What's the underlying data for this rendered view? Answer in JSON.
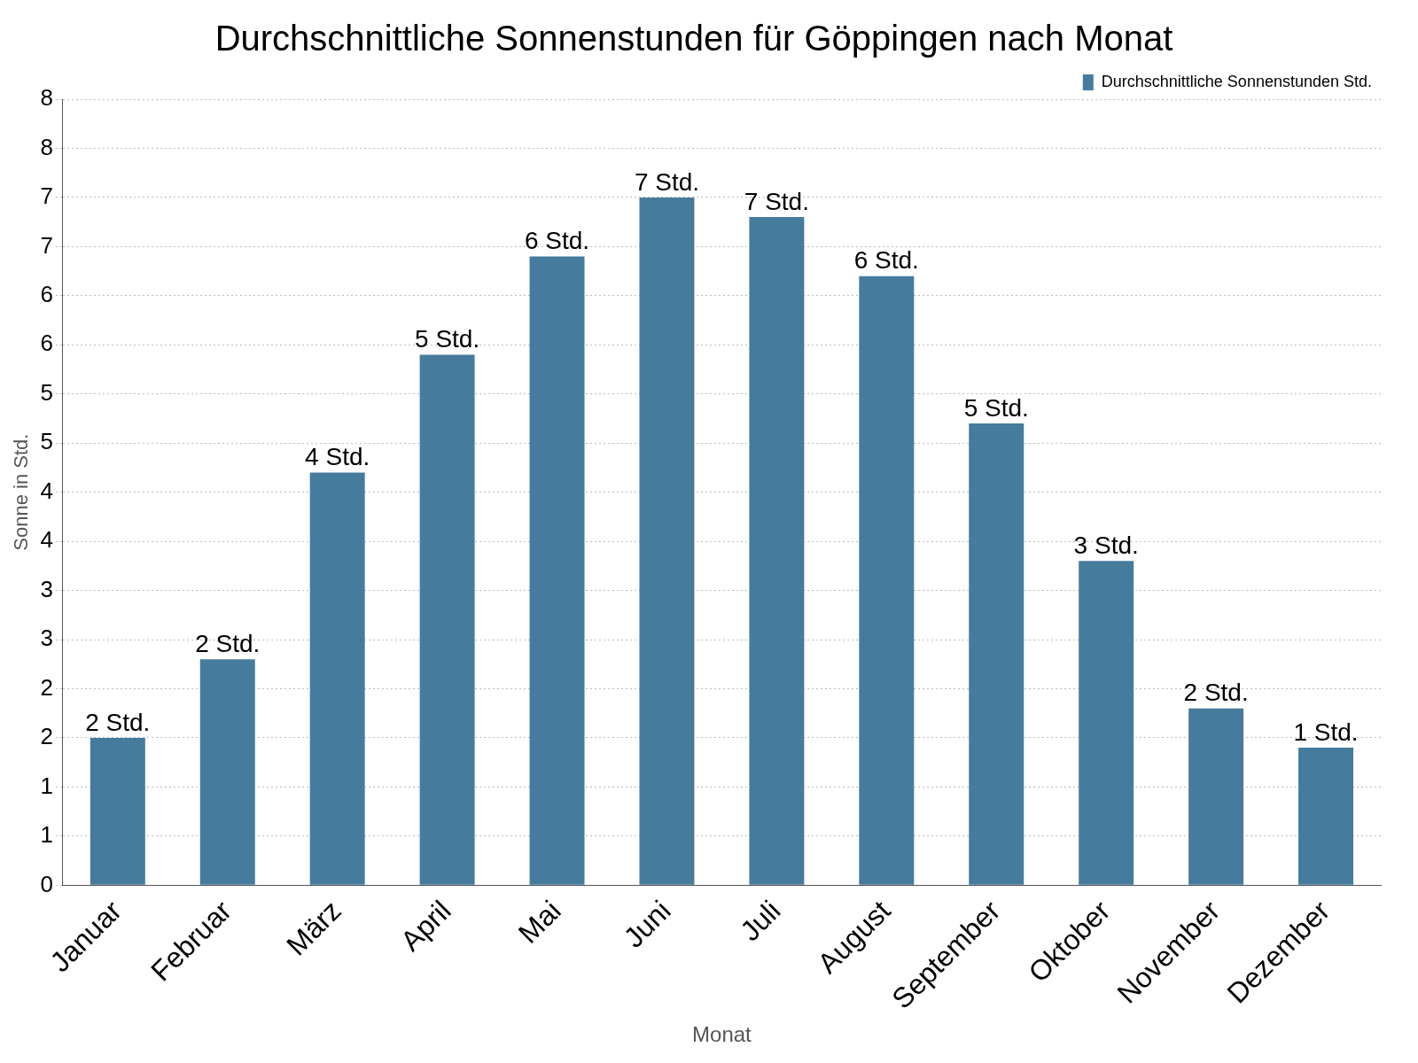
{
  "chart_data": {
    "type": "bar",
    "title": "Durchschnittliche Sonnenstunden für Göppingen nach Monat",
    "xlabel": "Monat",
    "ylabel": "Sonne in Std.",
    "categories": [
      "Januar",
      "Februar",
      "März",
      "April",
      "Mai",
      "Juni",
      "Juli",
      "August",
      "September",
      "Oktober",
      "November",
      "Dezember"
    ],
    "series": [
      {
        "name": "Durchschnittliche Sonnenstunden Std.",
        "color": "#457b9d",
        "values": [
          1.5,
          2.3,
          4.2,
          5.4,
          6.4,
          7.0,
          6.8,
          6.2,
          4.7,
          3.3,
          1.8,
          1.4
        ],
        "value_labels": [
          "2 Std.",
          "2 Std.",
          "4 Std.",
          "5 Std.",
          "6 Std.",
          "7 Std.",
          "7 Std.",
          "6 Std.",
          "5 Std.",
          "3 Std.",
          "2 Std.",
          "1 Std."
        ]
      }
    ],
    "ylim": [
      0,
      8
    ],
    "yticks": [
      0,
      {
        "value": 0.5,
        "label": "1"
      },
      1,
      {
        "value": 1.5,
        "label": "2"
      },
      2,
      {
        "value": 2.5,
        "label": "3"
      },
      3,
      {
        "value": 3.5,
        "label": "4"
      },
      4,
      {
        "value": 4.5,
        "label": "5"
      },
      5,
      {
        "value": 5.5,
        "label": "6"
      },
      6,
      {
        "value": 6.5,
        "label": "7"
      },
      7,
      {
        "value": 7.5,
        "label": "8"
      },
      8
    ],
    "grid": "y",
    "legend": "top right"
  }
}
